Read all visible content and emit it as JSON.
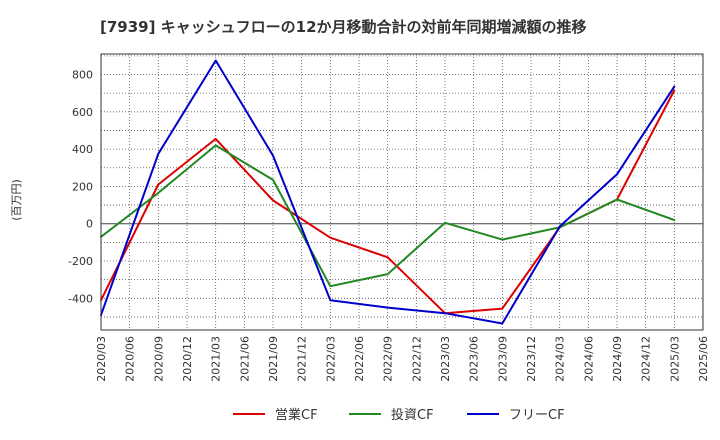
{
  "chart_data": {
    "type": "line",
    "title": "[7939]  キャッシュフローの12か月移動合計の対前年同期増減額の推移",
    "ylabel": "(百万円)",
    "xlabel": "",
    "ylim": [
      -570,
      910
    ],
    "yticks": [
      -400,
      -200,
      0,
      200,
      400,
      600,
      800
    ],
    "x": [
      "2020/03",
      "2020/06",
      "2020/09",
      "2020/12",
      "2021/03",
      "2021/06",
      "2021/09",
      "2021/12",
      "2022/03",
      "2022/06",
      "2022/09",
      "2022/12",
      "2023/03",
      "2023/06",
      "2023/09",
      "2023/12",
      "2024/03",
      "2024/06",
      "2024/09",
      "2024/12",
      "2025/03",
      "2025/06"
    ],
    "grid": true,
    "legend_position": "bottom",
    "series": [
      {
        "name": "営業CF",
        "color": "#dd0000",
        "values": [
          -410,
          null,
          210,
          null,
          455,
          null,
          125,
          null,
          -75,
          null,
          -180,
          null,
          -480,
          null,
          -455,
          null,
          -20,
          null,
          130,
          null,
          715,
          null
        ]
      },
      {
        "name": "投資CF",
        "color": "#228822",
        "values": [
          -70,
          null,
          165,
          null,
          420,
          null,
          235,
          null,
          -335,
          null,
          -270,
          null,
          5,
          null,
          -85,
          null,
          -20,
          null,
          130,
          null,
          20,
          null
        ]
      },
      {
        "name": "フリーCF",
        "color": "#0000cc",
        "values": [
          -490,
          null,
          375,
          null,
          875,
          null,
          365,
          null,
          -410,
          null,
          -450,
          null,
          -480,
          null,
          -535,
          null,
          -15,
          null,
          265,
          null,
          735,
          null
        ]
      }
    ]
  }
}
